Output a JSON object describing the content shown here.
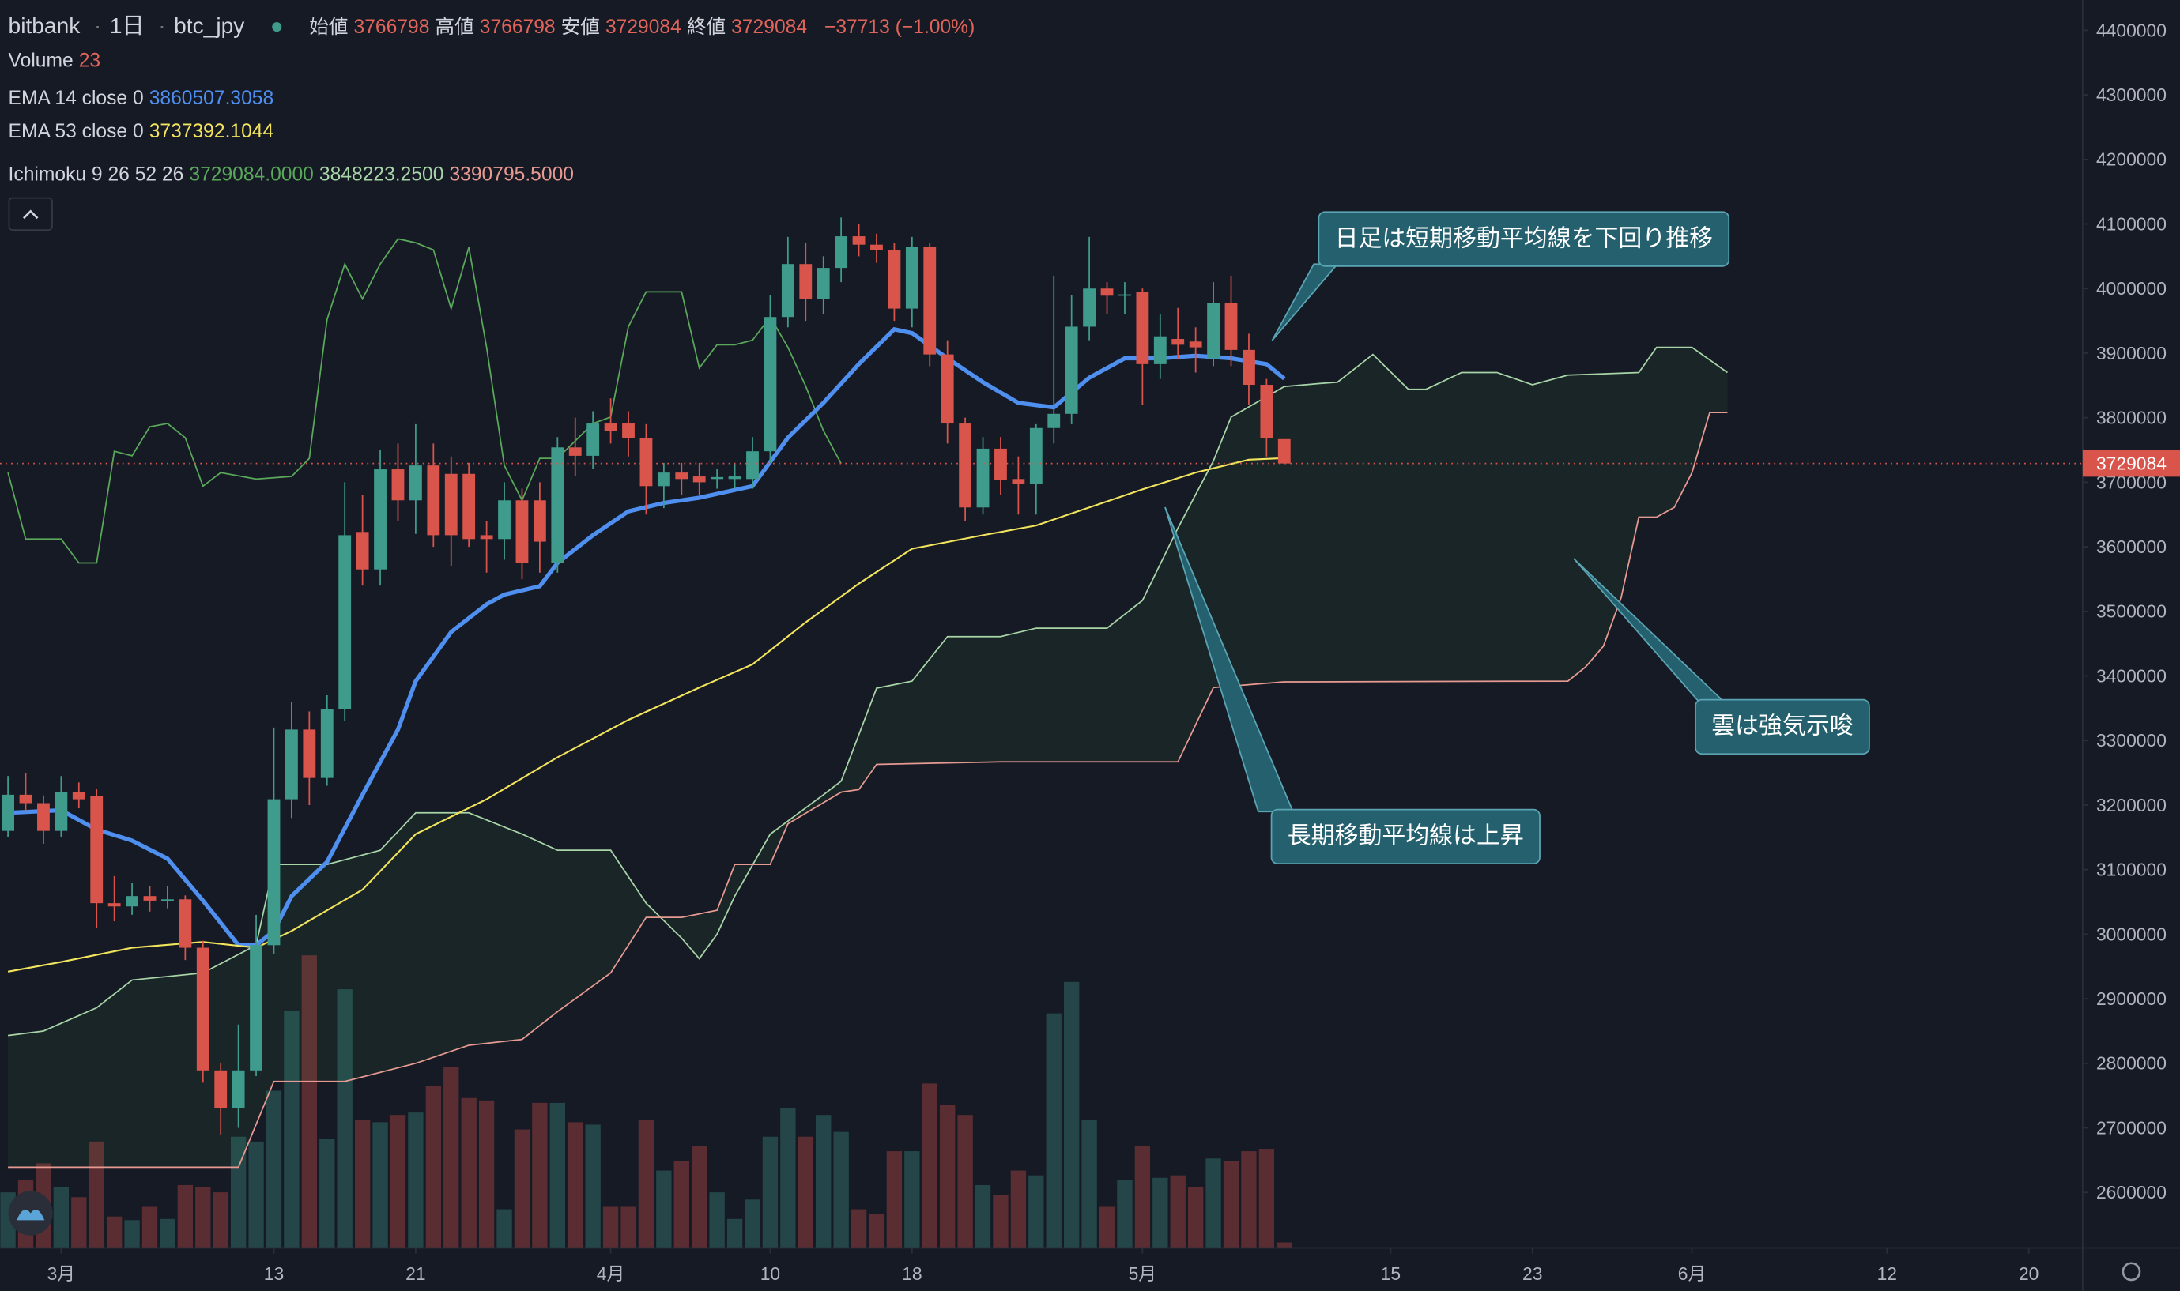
{
  "header": {
    "exchange": "bitbank",
    "interval": "1日",
    "symbol": "btc_jpy",
    "ohlc": [
      {
        "label": "始値",
        "value": 3766798
      },
      {
        "label": "高値",
        "value": 3766798
      },
      {
        "label": "安値",
        "value": 3729084
      },
      {
        "label": "終値",
        "value": 3729084
      }
    ],
    "change": "−37713 (−1.00%)"
  },
  "chart_data": {
    "type": "candlestick",
    "x": [
      -3,
      -2,
      -1,
      0,
      1,
      2,
      3,
      4,
      5,
      6,
      7,
      8,
      9,
      10,
      11,
      12,
      13,
      14,
      15,
      16,
      17,
      18,
      19,
      20,
      21,
      22,
      23,
      24,
      25,
      26,
      27,
      28,
      29,
      30,
      31,
      32,
      33,
      34,
      35,
      36,
      37,
      38,
      39,
      40,
      41,
      42,
      43,
      44,
      45,
      46,
      47,
      48,
      49,
      50,
      51,
      52,
      53,
      54,
      55,
      56,
      57,
      58,
      59,
      60,
      61,
      62,
      63,
      64,
      65,
      66,
      67,
      68,
      69
    ],
    "open": [
      3160000,
      3216000,
      3203000,
      3160000,
      3220000,
      3214000,
      3048000,
      3043000,
      3059000,
      3052000,
      3054000,
      2979000,
      2789000,
      2731000,
      2789000,
      2983000,
      3209000,
      3317000,
      3242000,
      3349000,
      3623000,
      3565000,
      3720000,
      3672000,
      3726000,
      3713000,
      3713000,
      3618000,
      3612000,
      3672000,
      3672000,
      3575000,
      3754000,
      3741000,
      3791000,
      3791000,
      3769000,
      3694000,
      3715000,
      3709000,
      3705000,
      3705000,
      3705000,
      3748000,
      3956000,
      4038000,
      3984000,
      4032000,
      4081000,
      4068000,
      4060000,
      3969000,
      4064000,
      3898000,
      3791000,
      3661000,
      3752000,
      3705000,
      3698000,
      3784000,
      3806000,
      3941000,
      4000000,
      3989000,
      3995000,
      3883000,
      3922000,
      3918000,
      3892000,
      3978000,
      3905000,
      3851000,
      3766798
    ],
    "high": [
      3245000,
      3250000,
      3215000,
      3245000,
      3235000,
      3225000,
      3090000,
      3080000,
      3075000,
      3075000,
      3060000,
      2990000,
      2800000,
      2860000,
      3030000,
      3320000,
      3360000,
      3345000,
      3370000,
      3700000,
      3680000,
      3750000,
      3760000,
      3790000,
      3760000,
      3740000,
      3730000,
      3640000,
      3700000,
      3690000,
      3700000,
      3770000,
      3800000,
      3810000,
      3830000,
      3810000,
      3790000,
      3730000,
      3730000,
      3730000,
      3720000,
      3730000,
      3770000,
      3990000,
      4080000,
      4070000,
      4050000,
      4110000,
      4100000,
      4085000,
      4070000,
      4080000,
      4070000,
      3920000,
      3800000,
      3770000,
      3770000,
      3740000,
      3790000,
      4020000,
      3990000,
      4080000,
      4010000,
      4010000,
      4000000,
      3960000,
      3970000,
      3940000,
      4010000,
      4020000,
      3930000,
      3860000,
      3766798
    ],
    "low": [
      3150000,
      3190000,
      3140000,
      3150000,
      3195000,
      3010000,
      3020000,
      3030000,
      3035000,
      3040000,
      2960000,
      2770000,
      2690000,
      2700000,
      2780000,
      2970000,
      3180000,
      3200000,
      3230000,
      3330000,
      3540000,
      3540000,
      3640000,
      3620000,
      3600000,
      3570000,
      3600000,
      3560000,
      3580000,
      3550000,
      3560000,
      3560000,
      3710000,
      3720000,
      3760000,
      3740000,
      3650000,
      3660000,
      3680000,
      3680000,
      3690000,
      3690000,
      3690000,
      3730000,
      3940000,
      3950000,
      3960000,
      4010000,
      4050000,
      4040000,
      3950000,
      3940000,
      3880000,
      3760000,
      3640000,
      3650000,
      3680000,
      3650000,
      3650000,
      3760000,
      3790000,
      3920000,
      3960000,
      3960000,
      3820000,
      3860000,
      3890000,
      3870000,
      3880000,
      3880000,
      3820000,
      3740000,
      3729084
    ],
    "close": [
      3216000,
      3203000,
      3160000,
      3220000,
      3209000,
      3048000,
      3043000,
      3059000,
      3052000,
      3054000,
      2979000,
      2789000,
      2731000,
      2789000,
      2983000,
      3209000,
      3317000,
      3242000,
      3349000,
      3618000,
      3565000,
      3720000,
      3672000,
      3726000,
      3618000,
      3618000,
      3612000,
      3612000,
      3672000,
      3575000,
      3608000,
      3754000,
      3741000,
      3791000,
      3780000,
      3769000,
      3694000,
      3715000,
      3705000,
      3700000,
      3708000,
      3709000,
      3748000,
      3956000,
      4038000,
      3984000,
      4032000,
      4081000,
      4068000,
      4060000,
      3969000,
      4064000,
      3898000,
      3791000,
      3661000,
      3752000,
      3704000,
      3698000,
      3784000,
      3806000,
      3941000,
      4000000,
      3989000,
      3991000,
      3883000,
      3926000,
      3913000,
      3909000,
      3978000,
      3905000,
      3851000,
      3769000,
      3729084
    ],
    "up_color": "#3f9c8d",
    "down_color": "#d9544b",
    "volume": {
      "name": "Volume",
      "values": [
        230,
        280,
        350,
        250,
        210,
        440,
        130,
        115,
        170,
        120,
        260,
        250,
        230,
        460,
        440,
        650,
        980,
        1210,
        450,
        1070,
        530,
        520,
        550,
        560,
        670,
        750,
        620,
        610,
        160,
        490,
        600,
        600,
        520,
        510,
        170,
        170,
        530,
        320,
        360,
        420,
        230,
        120,
        200,
        460,
        580,
        460,
        550,
        480,
        160,
        140,
        400,
        400,
        680,
        590,
        550,
        260,
        220,
        320,
        300,
        970,
        1100,
        530,
        170,
        280,
        420,
        290,
        300,
        250,
        370,
        360,
        400,
        410,
        23
      ]
    },
    "series": [
      {
        "name": "EMA 14 close 0",
        "color": "#4f8ff0",
        "x": [
          -3,
          0,
          2,
          4,
          6,
          8,
          10,
          11,
          12,
          13,
          15,
          17,
          19,
          20,
          22,
          24,
          25,
          27,
          28,
          30,
          32,
          34,
          36,
          39,
          41,
          43,
          45,
          47,
          48,
          50,
          52,
          54,
          56,
          58,
          60,
          62,
          64,
          66,
          68,
          69
        ],
        "values": [
          3188000,
          3192000,
          3162000,
          3145000,
          3117000,
          3052000,
          2983000,
          2983000,
          3005000,
          3059000,
          3112000,
          3216000,
          3317000,
          3392000,
          3468000,
          3511000,
          3526000,
          3539000,
          3575000,
          3618000,
          3655000,
          3668000,
          3676000,
          3694000,
          3769000,
          3823000,
          3883000,
          3937000,
          3931000,
          3892000,
          3855000,
          3823000,
          3816000,
          3862000,
          3892000,
          3892000,
          3896000,
          3892000,
          3883000,
          3860507.3058
        ]
      },
      {
        "name": "EMA 53 close 0",
        "color": "#f2e45c",
        "x": [
          -3,
          0,
          4,
          8,
          11,
          13,
          17,
          20,
          24,
          28,
          32,
          36,
          39,
          42,
          45,
          48,
          52,
          55,
          58,
          61,
          64,
          67,
          69
        ],
        "values": [
          2942000,
          2957000,
          2979000,
          2988000,
          2979000,
          3005000,
          3069000,
          3155000,
          3209000,
          3274000,
          3332000,
          3382000,
          3418000,
          3483000,
          3543000,
          3597000,
          3618000,
          3633000,
          3661000,
          3689000,
          3715000,
          3735000,
          3737392.1044
        ]
      }
    ],
    "ichimoku": {
      "name": "Ichimoku 9 26 52 26",
      "cloud_color": "#4caf50",
      "lines": [
        {
          "color": "#5aa85a",
          "x": [
            -3,
            -2,
            0,
            1,
            2,
            3,
            4,
            5,
            6,
            7,
            8,
            9,
            11,
            13,
            14,
            15,
            16,
            17,
            18,
            19,
            20,
            21,
            22,
            23,
            24,
            25,
            26,
            27,
            28,
            30,
            31,
            32,
            33,
            35,
            36,
            37,
            38,
            39,
            40,
            41,
            42,
            43,
            44
          ],
          "values": [
            3715000,
            3612000,
            3612000,
            3575000,
            3575000,
            3748000,
            3741000,
            3786000,
            3791000,
            3769000,
            3694000,
            3715000,
            3705000,
            3709000,
            3737000,
            3952000,
            4038000,
            3984000,
            4038000,
            4077000,
            4071000,
            4060000,
            3969000,
            4064000,
            3909000,
            3726000,
            3672000,
            3737000,
            3737000,
            3791000,
            3801000,
            3941000,
            3995000,
            3995000,
            3877000,
            3913000,
            3913000,
            3920000,
            3956000,
            3909000,
            3849000,
            3780000,
            3729084
          ],
          "value_labels": [
            null,
            null,
            null,
            null,
            null,
            null,
            null,
            null,
            null,
            null,
            null,
            null,
            null,
            null,
            null,
            null,
            null,
            null,
            null,
            null,
            null,
            null,
            null,
            null,
            null,
            null,
            null,
            null,
            null,
            null,
            null,
            null,
            null,
            null,
            null,
            null,
            null,
            null,
            null,
            null,
            null,
            null,
            "3729084.0000"
          ]
        },
        {
          "color": "#a8d5a8",
          "x": [
            -3,
            -1,
            2,
            4,
            8,
            11,
            12,
            15,
            18,
            20,
            23,
            26,
            28,
            31,
            33,
            35,
            36,
            37,
            38,
            40,
            43,
            44,
            46,
            48,
            50,
            53,
            55,
            59,
            61,
            63,
            65,
            66,
            69,
            71,
            72,
            74,
            76,
            77,
            79,
            81,
            83,
            85,
            89,
            90,
            92,
            94
          ],
          "values": [
            2843000,
            2850000,
            2886000,
            2929000,
            2940000,
            2983000,
            3108000,
            3108000,
            3130000,
            3188000,
            3188000,
            3155000,
            3130000,
            3130000,
            3048000,
            2994000,
            2962000,
            3000000,
            3059000,
            3155000,
            3216000,
            3237000,
            3381000,
            3392000,
            3461000,
            3461000,
            3474000,
            3474000,
            3517000,
            3629000,
            3733000,
            3801000,
            3848223.25,
            3853000,
            3855000,
            3898000,
            3844000,
            3844000,
            3870000,
            3870000,
            3851000,
            3866000,
            3870000,
            3909000,
            3909000,
            3870000
          ],
          "value_labels": [
            null,
            null,
            null,
            null,
            null,
            null,
            null,
            null,
            null,
            null,
            null,
            null,
            null,
            null,
            null,
            null,
            null,
            null,
            null,
            null,
            null,
            null,
            null,
            null,
            null,
            null,
            null,
            null,
            null,
            null,
            null,
            null,
            "3848223.2500",
            null,
            null,
            null,
            null,
            null,
            null,
            null,
            null,
            null,
            null,
            null,
            null,
            null
          ]
        },
        {
          "color": "#e79a92",
          "x": [
            -3,
            10,
            12,
            16,
            20,
            23,
            26,
            28,
            31,
            33,
            35,
            37,
            38,
            40,
            41,
            44,
            45,
            46,
            53,
            63,
            65,
            69,
            85,
            86,
            87,
            88,
            89,
            90,
            91,
            92,
            93,
            94
          ],
          "values": [
            2639000,
            2639000,
            2772000,
            2772000,
            2800000,
            2828000,
            2837000,
            2880000,
            2940000,
            3026000,
            3026000,
            3037000,
            3108000,
            3108000,
            3171000,
            3220000,
            3224000,
            3263000,
            3267000,
            3267000,
            3382000,
            3390795.5,
            3392000,
            3414000,
            3446000,
            3521000,
            3646000,
            3646000,
            3661000,
            3715000,
            3808000,
            3808000
          ],
          "value_labels": [
            null,
            null,
            null,
            null,
            null,
            null,
            null,
            null,
            null,
            null,
            null,
            null,
            null,
            null,
            null,
            null,
            null,
            null,
            null,
            null,
            null,
            "3390795.5000",
            null,
            null,
            null,
            null,
            null,
            null,
            null,
            null,
            null,
            null
          ]
        }
      ]
    },
    "last_price": 3729084,
    "xlim": [
      -3.45,
      114.04
    ],
    "ylim": [
      2514000,
      4447000
    ],
    "xticks": [
      {
        "value": 0,
        "label": "3月"
      },
      {
        "value": 12,
        "label": "13"
      },
      {
        "value": 20,
        "label": "21"
      },
      {
        "value": 31,
        "label": "4月"
      },
      {
        "value": 40,
        "label": "10"
      },
      {
        "value": 48,
        "label": "18"
      },
      {
        "value": 61,
        "label": "5月"
      },
      {
        "value": 75,
        "label": "15"
      },
      {
        "value": 83,
        "label": "23"
      },
      {
        "value": 92,
        "label": "6月"
      },
      {
        "value": 103,
        "label": "12"
      },
      {
        "value": 111,
        "label": "20"
      }
    ],
    "yticks": [
      2600000,
      2700000,
      2800000,
      2900000,
      3000000,
      3100000,
      3200000,
      3300000,
      3400000,
      3500000,
      3600000,
      3700000,
      3800000,
      3900000,
      4000000,
      4100000,
      4200000,
      4300000,
      4400000
    ],
    "annotations": [
      "日足は短期移動平均線を下回り推移",
      "長期移動平均線は上昇",
      "雲は強気示唆"
    ]
  }
}
